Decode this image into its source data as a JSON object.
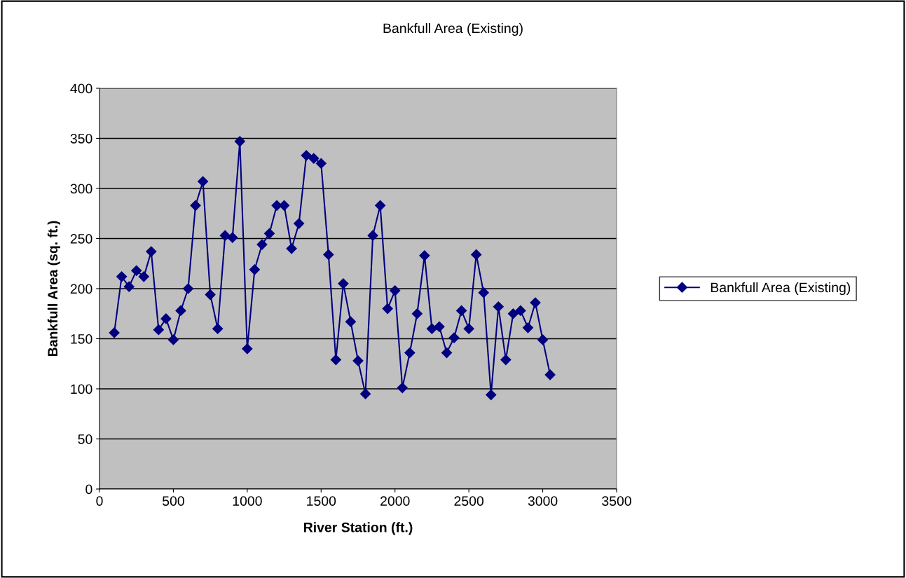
{
  "chart_data": {
    "type": "line",
    "title": "Bankfull Area (Existing)",
    "xlabel": "River Station (ft.)",
    "ylabel": "Bankfull Area (sq. ft.)",
    "x": [
      100,
      150,
      200,
      250,
      300,
      350,
      400,
      450,
      500,
      550,
      600,
      650,
      700,
      750,
      800,
      850,
      900,
      950,
      1000,
      1050,
      1100,
      1150,
      1200,
      1250,
      1300,
      1350,
      1400,
      1450,
      1500,
      1550,
      1600,
      1650,
      1700,
      1750,
      1800,
      1850,
      1900,
      1950,
      2000,
      2050,
      2100,
      2150,
      2200,
      2250,
      2300,
      2350,
      2400,
      2450,
      2500,
      2550,
      2600,
      2650,
      2700,
      2750,
      2800,
      2850,
      2900,
      2950,
      3000,
      3050
    ],
    "series": [
      {
        "name": "Bankfull Area (Existing)",
        "color": "#000080",
        "values": [
          156,
          212,
          202,
          218,
          212,
          237,
          159,
          170,
          149,
          178,
          200,
          283,
          307,
          194,
          160,
          253,
          251,
          347,
          140,
          219,
          244,
          255,
          283,
          283,
          240,
          265,
          333,
          330,
          325,
          234,
          129,
          205,
          167,
          128,
          95,
          253,
          283,
          180,
          198,
          101,
          136,
          175,
          233,
          160,
          162,
          136,
          151,
          178,
          160,
          234,
          196,
          94,
          182,
          129,
          175,
          178,
          161,
          186,
          149,
          114
        ]
      }
    ],
    "xlim": [
      0,
      3500
    ],
    "xticks": [
      0,
      500,
      1000,
      1500,
      2000,
      2500,
      3000,
      3500
    ],
    "ylim": [
      0,
      400
    ],
    "yticks": [
      0,
      50,
      100,
      150,
      200,
      250,
      300,
      350,
      400
    ],
    "grid": "y",
    "legend": "right",
    "marker": "diamond",
    "line_style": "solid"
  }
}
